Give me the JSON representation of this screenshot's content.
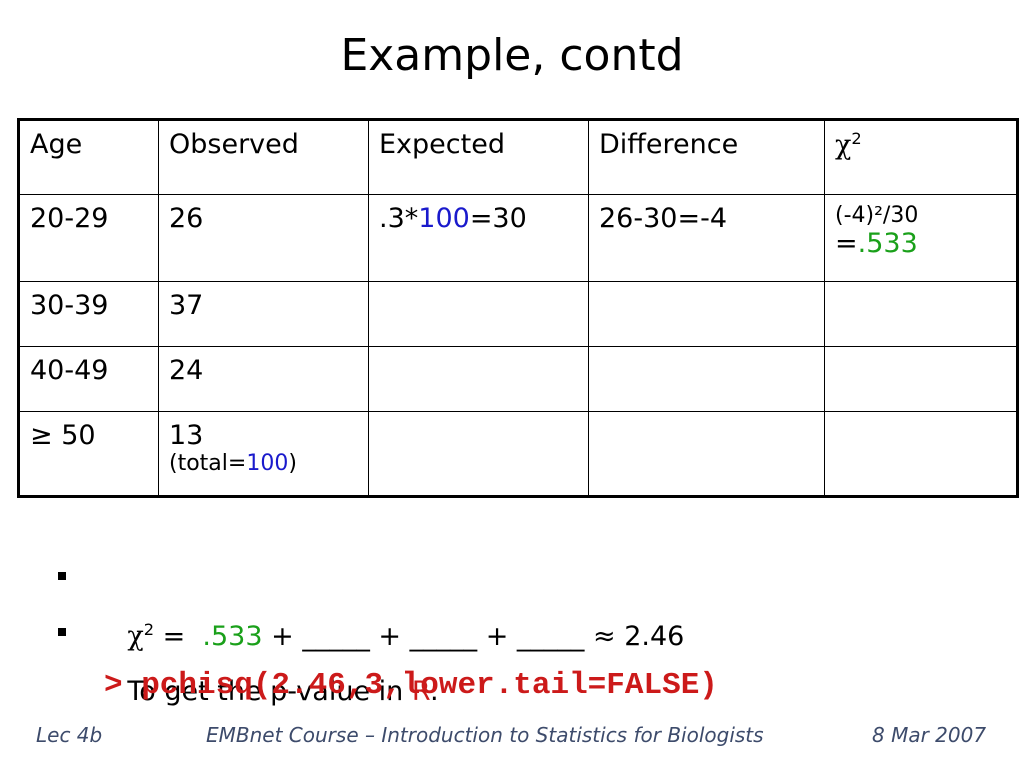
{
  "title": "Example, contd",
  "table": {
    "header": [
      "Age",
      "Observed",
      "Expected",
      "Difference",
      {
        "symbol": "χ",
        "sup": "2"
      }
    ],
    "rows": [
      [
        "20-29",
        "26",
        {
          "pre": ".3*",
          "total": "100",
          "post": "=30"
        },
        "26-30=-4",
        {
          "line1": "(-4)²/30",
          "eq": "=",
          "value": ".533"
        }
      ],
      [
        "30-39",
        "37"
      ],
      [
        "40-49",
        "24"
      ],
      [
        "≥ 50",
        {
          "value": "13",
          "note_pre": "(total=",
          "note_total": "100",
          "note_post": ")"
        }
      ]
    ]
  },
  "bullets": [
    {
      "symbol": "χ",
      "sup": "2",
      "eq": "=",
      "first": ".533",
      "rest": "+ _____ + _____ + _____",
      "approx": "≈ 2.46"
    },
    {
      "text": "To get the p-value in",
      "r": "R",
      "colon": ":"
    }
  ],
  "code": "> pchisq(2.46,3,lower.tail=FALSE)",
  "footer": {
    "left": "Lec 4b",
    "center": "EMBnet Course – Introduction to Statistics for Biologists",
    "right": "8 Mar 2007"
  }
}
